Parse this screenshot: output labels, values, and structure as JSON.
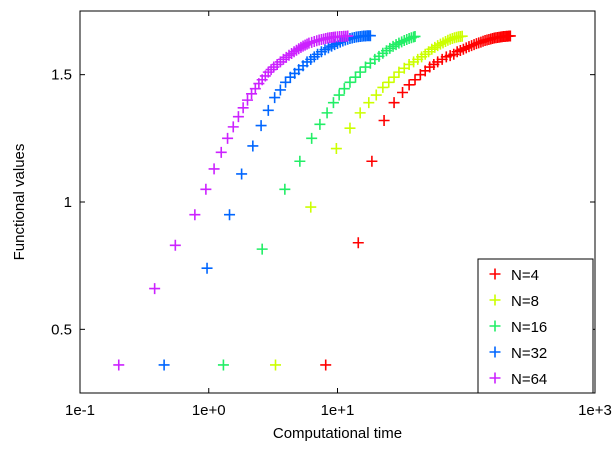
{
  "chart_data": {
    "type": "scatter",
    "title": "",
    "xlabel": "Computational time",
    "ylabel": "Functional values",
    "xscale": "log",
    "xlim": [
      0.1,
      1000
    ],
    "ylim": [
      0.25,
      1.75
    ],
    "xticks": [
      0.1,
      1,
      1000
    ],
    "xtick_labels": [
      "1e-1",
      "1e+0",
      "1e+3"
    ],
    "extra_xtick": {
      "value": 10,
      "label": "1e+1"
    },
    "yticks": [
      0.5,
      1,
      1.5
    ],
    "ytick_labels": [
      "0.5",
      "1",
      "1.5"
    ],
    "grid": false,
    "legend_position": "bottom-right",
    "marker": "+",
    "series": [
      {
        "name": "N=4",
        "color": "#ff0000",
        "x": [
          8.1,
          14.5,
          18.5,
          23,
          27.5,
          32,
          36,
          40,
          44,
          48,
          52,
          56,
          60,
          65,
          70,
          75,
          80,
          85,
          90,
          95,
          100,
          105,
          110,
          115,
          120,
          125,
          130,
          135,
          140,
          145,
          150,
          155,
          160,
          165,
          170,
          175,
          180,
          185,
          190,
          195,
          200,
          205,
          210,
          215,
          220
        ],
        "y": [
          0.36,
          0.84,
          1.16,
          1.32,
          1.39,
          1.43,
          1.46,
          1.48,
          1.5,
          1.515,
          1.53,
          1.54,
          1.55,
          1.56,
          1.57,
          1.575,
          1.58,
          1.59,
          1.595,
          1.6,
          1.605,
          1.61,
          1.614,
          1.618,
          1.622,
          1.625,
          1.628,
          1.631,
          1.634,
          1.636,
          1.638,
          1.64,
          1.642,
          1.644,
          1.645,
          1.646,
          1.647,
          1.648,
          1.649,
          1.65,
          1.65,
          1.651,
          1.651,
          1.652,
          1.652
        ]
      },
      {
        "name": "N=8",
        "color": "#ccff00",
        "x": [
          3.3,
          6.2,
          9.8,
          12.5,
          15,
          17.5,
          20,
          22.5,
          25,
          27.5,
          30,
          33,
          36,
          39,
          42,
          45,
          48,
          51,
          54,
          57,
          60,
          63,
          66,
          69,
          72,
          75,
          78,
          81,
          84,
          87,
          90,
          93
        ],
        "y": [
          0.36,
          0.98,
          1.21,
          1.29,
          1.35,
          1.39,
          1.42,
          1.45,
          1.47,
          1.49,
          1.51,
          1.525,
          1.54,
          1.55,
          1.56,
          1.57,
          1.58,
          1.59,
          1.6,
          1.607,
          1.614,
          1.62,
          1.625,
          1.63,
          1.635,
          1.639,
          1.642,
          1.645,
          1.647,
          1.649,
          1.65,
          1.651
        ]
      },
      {
        "name": "N=16",
        "color": "#22ee66",
        "x": [
          1.3,
          2.6,
          3.9,
          5.1,
          6.3,
          7.3,
          8.3,
          9.3,
          10.3,
          11.3,
          12.5,
          13.8,
          15,
          16.5,
          18,
          19.5,
          21,
          22.5,
          24,
          25.5,
          27,
          28.5,
          30,
          31.5,
          33,
          34.5,
          36,
          37.5,
          39,
          40
        ],
        "y": [
          0.36,
          0.815,
          1.05,
          1.16,
          1.25,
          1.305,
          1.35,
          1.39,
          1.42,
          1.445,
          1.47,
          1.49,
          1.51,
          1.53,
          1.545,
          1.56,
          1.572,
          1.584,
          1.594,
          1.603,
          1.611,
          1.618,
          1.624,
          1.629,
          1.634,
          1.638,
          1.642,
          1.645,
          1.648,
          1.65
        ]
      },
      {
        "name": "N=32",
        "color": "#0066ff",
        "x": [
          0.45,
          0.97,
          1.45,
          1.8,
          2.2,
          2.55,
          2.9,
          3.25,
          3.6,
          3.95,
          4.3,
          4.65,
          5.0,
          5.4,
          5.8,
          6.2,
          6.6,
          7.0,
          7.5,
          8.0,
          8.5,
          9.0,
          9.5,
          10,
          10.5,
          11,
          11.5,
          12,
          12.5,
          13,
          13.5,
          14,
          14.5,
          15,
          15.5,
          16,
          16.5,
          17,
          17.5,
          18
        ],
        "y": [
          0.36,
          0.74,
          0.95,
          1.11,
          1.22,
          1.3,
          1.36,
          1.41,
          1.44,
          1.47,
          1.49,
          1.505,
          1.52,
          1.535,
          1.55,
          1.56,
          1.57,
          1.58,
          1.59,
          1.598,
          1.605,
          1.612,
          1.618,
          1.623,
          1.628,
          1.632,
          1.636,
          1.639,
          1.642,
          1.644,
          1.646,
          1.648,
          1.649,
          1.65,
          1.651,
          1.652,
          1.652,
          1.653,
          1.653,
          1.653
        ]
      },
      {
        "name": "N=64",
        "color": "#cc22ff",
        "x": [
          0.2,
          0.38,
          0.55,
          0.78,
          0.95,
          1.1,
          1.25,
          1.4,
          1.55,
          1.7,
          1.85,
          2.0,
          2.15,
          2.3,
          2.45,
          2.6,
          2.75,
          2.9,
          3.05,
          3.2,
          3.4,
          3.6,
          3.8,
          4.0,
          4.2,
          4.4,
          4.6,
          4.8,
          5.0,
          5.2,
          5.4,
          5.6,
          5.8,
          6.0,
          6.3,
          6.6,
          6.9,
          7.2,
          7.5,
          7.8,
          8.1,
          8.4,
          8.7,
          9.0,
          9.3,
          9.6,
          10,
          10.4,
          10.8,
          11.2,
          11.6,
          12
        ],
        "y": [
          0.36,
          0.66,
          0.83,
          0.95,
          1.05,
          1.13,
          1.195,
          1.25,
          1.295,
          1.335,
          1.37,
          1.4,
          1.425,
          1.445,
          1.465,
          1.48,
          1.495,
          1.51,
          1.52,
          1.53,
          1.54,
          1.55,
          1.56,
          1.568,
          1.576,
          1.583,
          1.59,
          1.596,
          1.602,
          1.607,
          1.612,
          1.616,
          1.62,
          1.624,
          1.627,
          1.63,
          1.633,
          1.636,
          1.638,
          1.64,
          1.642,
          1.644,
          1.645,
          1.646,
          1.647,
          1.648,
          1.649,
          1.65,
          1.65,
          1.651,
          1.651,
          1.652
        ]
      }
    ]
  }
}
